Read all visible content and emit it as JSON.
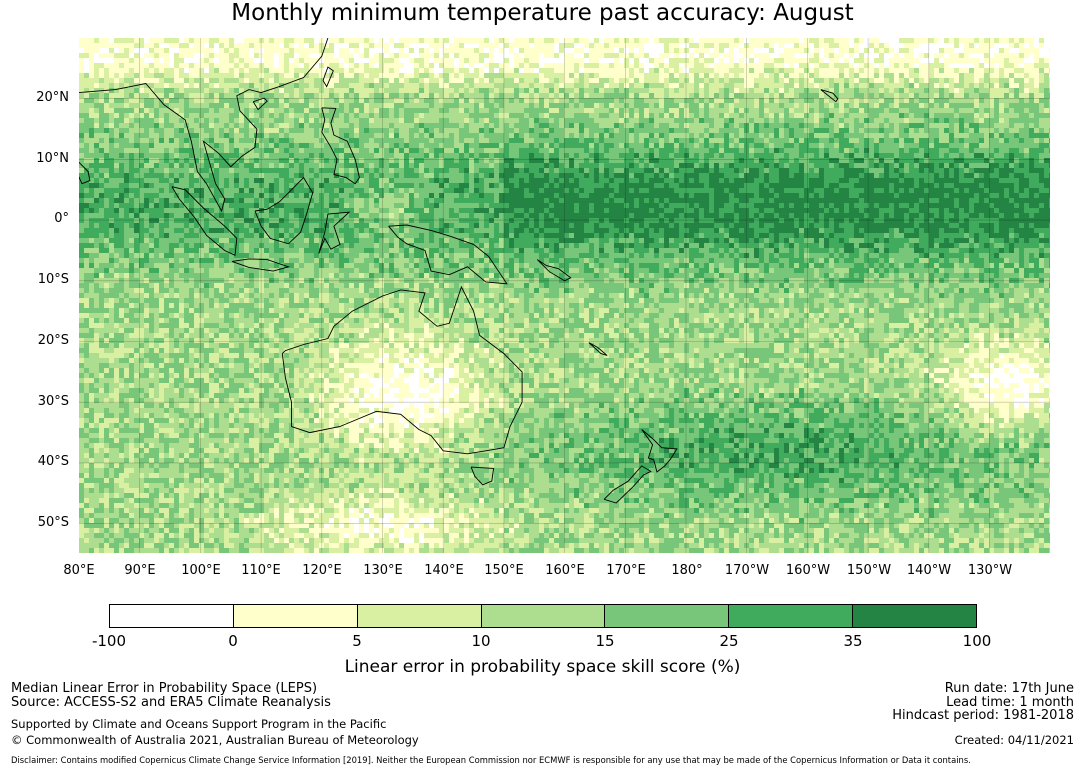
{
  "title": "Monthly minimum temperature past accuracy: August",
  "map": {
    "lat_labels": [
      "20°N",
      "10°N",
      "0°",
      "10°S",
      "20°S",
      "30°S",
      "40°S",
      "50°S"
    ],
    "lon_labels": [
      "80°E",
      "90°E",
      "100°E",
      "110°E",
      "120°E",
      "130°E",
      "140°E",
      "150°E",
      "160°E",
      "170°E",
      "180°",
      "170°W",
      "160°W",
      "150°W",
      "140°W",
      "130°W"
    ]
  },
  "colorbar": {
    "ticks": [
      "-100",
      "0",
      "5",
      "10",
      "15",
      "25",
      "35",
      "100"
    ],
    "colors": [
      "#ffffff",
      "#ffffcc",
      "#d9f0a3",
      "#addd8e",
      "#78c679",
      "#41ab5d",
      "#238443"
    ],
    "label": "Linear error in probability space skill score (%)"
  },
  "footer": {
    "left_line1": "Median Linear Error in Probability Space (LEPS)",
    "left_line2": "Source: ACCESS-S2 and ERA5 Climate Reanalysis",
    "left_line3": "Supported by Climate and Oceans Support Program in the Pacific",
    "left_line4": "© Commonwealth of Australia 2021, Australian Bureau of Meteorology",
    "right_line1": "Run date: 17th June",
    "right_line2": "Lead time: 1 month",
    "right_line3": "Hindcast period: 1981-2018",
    "right_line4": "Created: 04/11/2021",
    "disclaimer": "Disclaimer: Contains modified Copernicus Climate Change Service Information [2019]. Neither the European Commission nor ECMWF is responsible for any use that may be made of the Copernicus Information or Data it contains."
  }
}
